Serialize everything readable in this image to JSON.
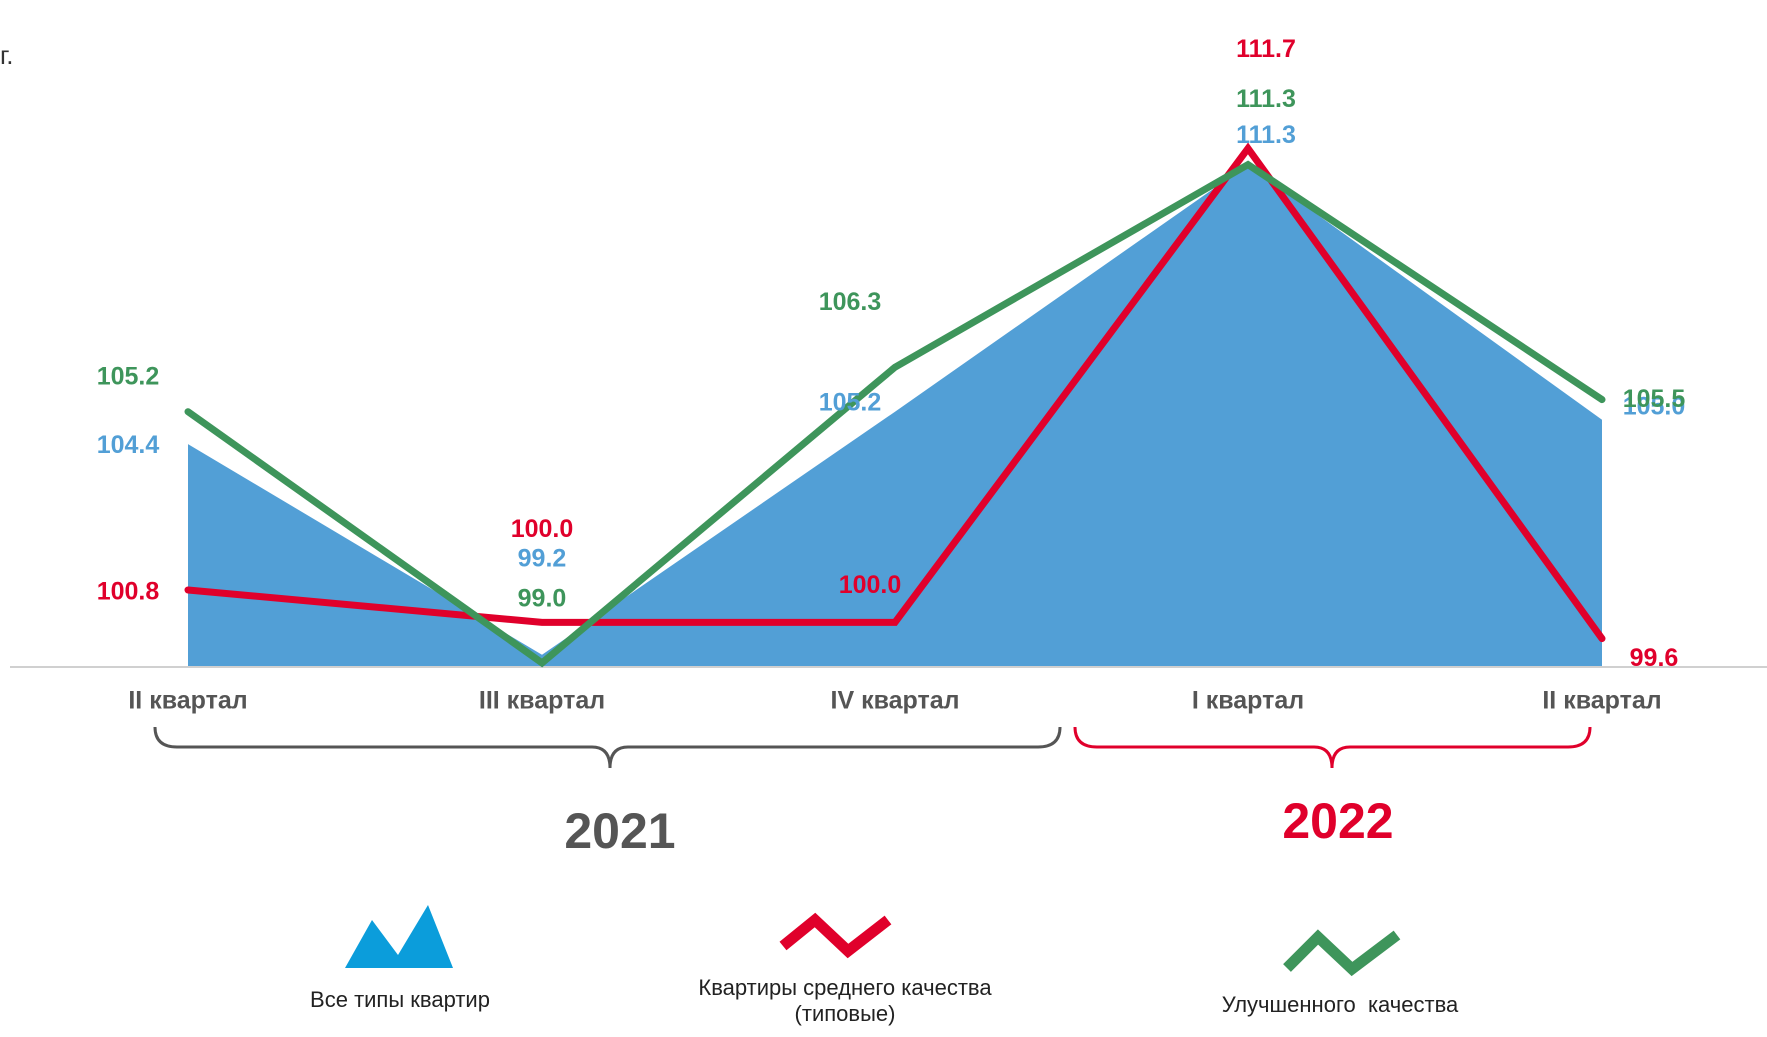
{
  "corner_text": "г.",
  "chart_data": {
    "type": "line",
    "categories": [
      "II квартал",
      "III квартал",
      "IV квартал",
      "I квартал",
      "II квартал"
    ],
    "ylim": [
      98.9,
      112.4
    ],
    "grid": false,
    "legend_position": "bottom",
    "series": [
      {
        "name": "Все типы квартир",
        "kind": "area",
        "color": "#529fd6",
        "label_color": "#529fd6",
        "values": [
          104.4,
          99.2,
          105.2,
          111.3,
          105.0
        ],
        "labels": [
          "104.4",
          "99.2",
          "105.2",
          "111.3",
          "105.0"
        ]
      },
      {
        "name": "Квартиры среднего качества (типовые)",
        "kind": "line",
        "color": "#e0002b",
        "label_color": "#e0002b",
        "values": [
          100.8,
          100.0,
          100.0,
          111.7,
          99.6
        ],
        "labels": [
          "100.8",
          "100.0",
          "100.0",
          "111.7",
          "99.6"
        ]
      },
      {
        "name": "Улучшенного  качества",
        "kind": "line",
        "color": "#3e955b",
        "label_color": "#3e955b",
        "values": [
          105.2,
          99.0,
          106.3,
          111.3,
          105.5
        ],
        "labels": [
          "105.2",
          "99.0",
          "106.3",
          "111.3",
          "105.5"
        ]
      }
    ],
    "year_groups": [
      {
        "label": "2021",
        "color": "#555555",
        "from": 0,
        "to": 2
      },
      {
        "label": "2022",
        "color": "#e0002b",
        "from": 3,
        "to": 4
      }
    ]
  },
  "legend": [
    {
      "label_lines": [
        "Все типы квартир"
      ],
      "icon": "blue-mountain-icon",
      "color": "#0b9ddb"
    },
    {
      "label_lines": [
        "Квартиры среднего качества",
        "(типовые)"
      ],
      "icon": "red-zigzag-icon",
      "color": "#e0002b"
    },
    {
      "label_lines": [
        "Улучшенного  качества"
      ],
      "icon": "green-zigzag-icon",
      "color": "#3e955b"
    }
  ]
}
